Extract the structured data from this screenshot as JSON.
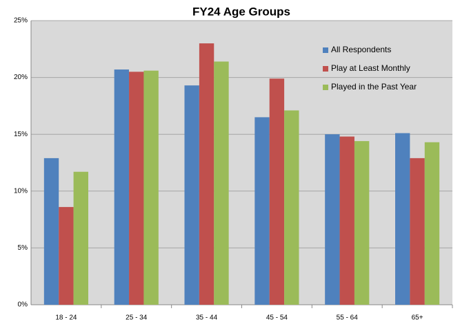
{
  "chart_data": {
    "type": "bar",
    "title": "FY24 Age Groups",
    "categories": [
      "18 - 24",
      "25 - 34",
      "35 - 44",
      "45 - 54",
      "55 - 64",
      "65+"
    ],
    "series": [
      {
        "name": "All Respondents",
        "color": "#4f81bd",
        "values": [
          12.9,
          20.7,
          19.3,
          16.5,
          15.0,
          15.1
        ]
      },
      {
        "name": "Play at Least Monthly",
        "color": "#c0504d",
        "values": [
          8.6,
          20.5,
          23.0,
          19.9,
          14.8,
          12.9
        ]
      },
      {
        "name": "Played in the Past Year",
        "color": "#9bbb59",
        "values": [
          11.7,
          20.6,
          21.4,
          17.1,
          14.4,
          14.3
        ]
      }
    ],
    "ylim": [
      0,
      25
    ],
    "yticks": [
      {
        "value": 0,
        "label": "0%"
      },
      {
        "value": 5,
        "label": "5%"
      },
      {
        "value": 10,
        "label": "10%"
      },
      {
        "value": 15,
        "label": "15%"
      },
      {
        "value": 20,
        "label": "20%"
      },
      {
        "value": 25,
        "label": "25%"
      }
    ],
    "grid": true,
    "legend": "top-right"
  }
}
